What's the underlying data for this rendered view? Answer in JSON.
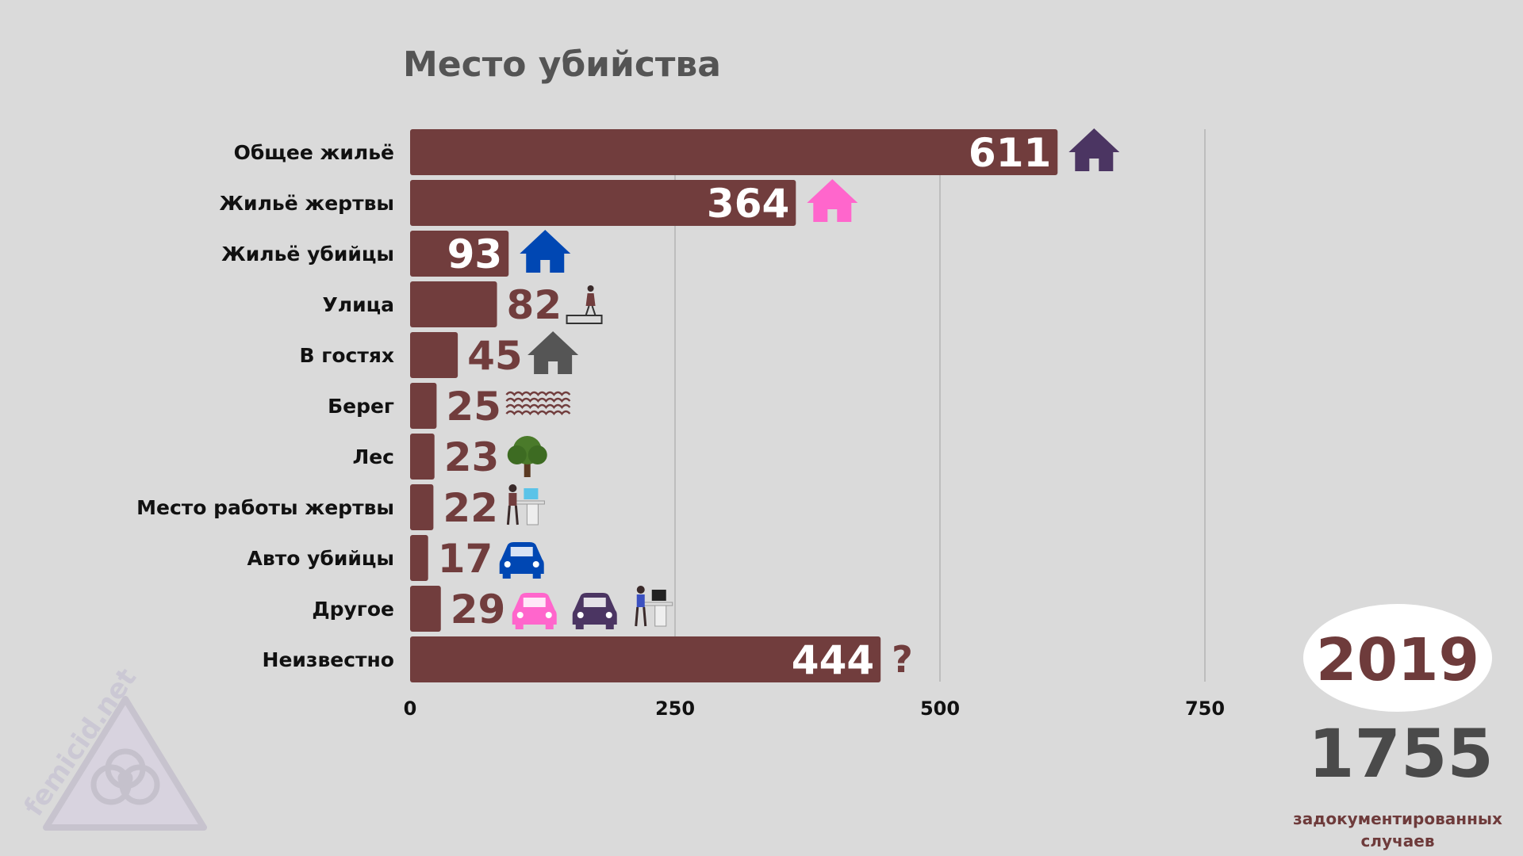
{
  "chart_data": {
    "type": "bar",
    "orientation": "horizontal",
    "title": "Место убийства",
    "categories": [
      "Общее жильё",
      "Жильё жертвы",
      "Жильё убийцы",
      "Улица",
      "В гостях",
      "Берег",
      "Лес",
      "Место работы жертвы",
      "Авто убийцы",
      "Другое",
      "Неизвестно"
    ],
    "values": [
      611,
      364,
      93,
      82,
      45,
      25,
      23,
      22,
      17,
      29,
      444
    ],
    "xlim": [
      0,
      750
    ],
    "xticks": [
      0,
      250,
      500,
      750
    ],
    "grid": true,
    "bar_color": "#713d3d",
    "icons": [
      [
        "house-icon"
      ],
      [
        "house-icon"
      ],
      [
        "house-icon"
      ],
      [
        "walking-woman-icon"
      ],
      [
        "house-icon"
      ],
      [
        "waves-icon"
      ],
      [
        "tree-icon"
      ],
      [
        "office-desk-icon"
      ],
      [
        "car-icon"
      ],
      [
        "car-icon",
        "car-icon",
        "computer-desk-icon"
      ],
      [
        "question-mark-icon"
      ]
    ],
    "icon_colors": [
      [
        "#4b3562"
      ],
      [
        "#ff66cc"
      ],
      [
        "#0047b3"
      ],
      [
        "#713d3d"
      ],
      [
        "#555555"
      ],
      [
        "#713d3d"
      ],
      [
        "#4a7a2a"
      ],
      [
        "#5bc3e8"
      ],
      [
        "#0047b3"
      ],
      [
        "#ff66cc",
        "#4b3562",
        "#3b50c0"
      ],
      [
        "#713d3d"
      ]
    ]
  },
  "summary": {
    "year": "2019",
    "total": "1755",
    "caption_line1": "задокументированных",
    "caption_line2": "случаев"
  },
  "watermark": {
    "text": "femicid.net",
    "icon": "biohazard-icon"
  },
  "colors": {
    "background": "#dadada",
    "bar": "#713d3d",
    "label_inside": "#ffffff",
    "label_outside": "#713d3d"
  }
}
